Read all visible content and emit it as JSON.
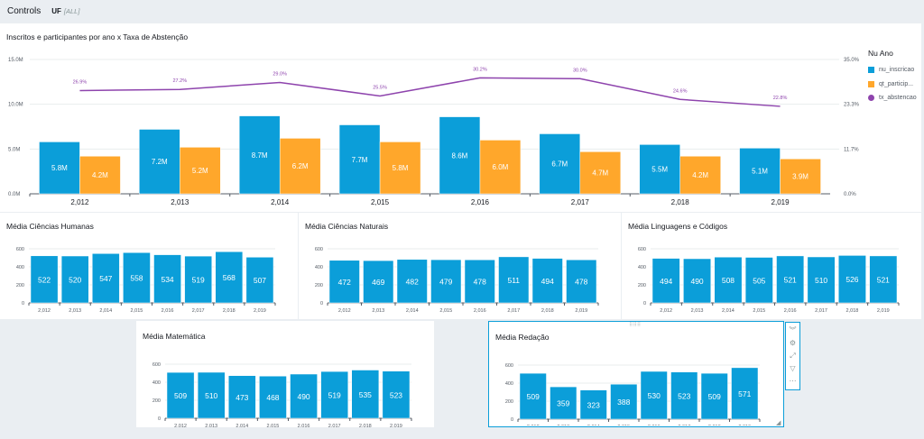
{
  "controls": {
    "label": "Controls",
    "filter_name": "UF",
    "filter_value": "[ALL]"
  },
  "colors": {
    "blue": "#0b9ed9",
    "orange": "#ffa72b",
    "purple": "#8e44ad",
    "selection": "#0b9ed9"
  },
  "toolbar": {
    "icons": [
      "collapse-icon",
      "settings-icon",
      "expand-icon",
      "filter-icon",
      "more-options-icon"
    ],
    "glyphs": [
      "︾",
      "⚙",
      "⤢",
      "▽",
      "⋯"
    ],
    "drag_glyph": "⠿⠿⠿",
    "resize_glyph": "◢"
  },
  "chart_data": [
    {
      "type": "bar",
      "title": "Inscritos e participantes por ano x Taxa de Abstenção",
      "categories": [
        "2,012",
        "2,013",
        "2,014",
        "2,015",
        "2,016",
        "2,017",
        "2,018",
        "2,019"
      ],
      "series": [
        {
          "name": "nu_inscricao",
          "type": "bar",
          "axis": "left",
          "values": [
            5.8,
            7.2,
            8.7,
            7.7,
            8.6,
            6.7,
            5.5,
            5.1
          ],
          "labels": [
            "5.8M",
            "7.2M",
            "8.7M",
            "7.7M",
            "8.6M",
            "6.7M",
            "5.5M",
            "5.1M"
          ]
        },
        {
          "name": "qt_particip...",
          "type": "bar",
          "axis": "left",
          "values": [
            4.2,
            5.2,
            6.2,
            5.8,
            6.0,
            4.7,
            4.2,
            3.9
          ],
          "labels": [
            "4.2M",
            "5.2M",
            "6.2M",
            "5.8M",
            "6.0M",
            "4.7M",
            "4.2M",
            "3.9M"
          ]
        },
        {
          "name": "tx_abstencao",
          "type": "line",
          "axis": "right",
          "values": [
            26.9,
            27.2,
            29.0,
            25.5,
            30.2,
            30.0,
            24.6,
            22.8
          ],
          "labels": [
            "26.9%",
            "27.2%",
            "29.0%",
            "25.5%",
            "30.2%",
            "30.0%",
            "24.6%",
            "22.8%"
          ]
        }
      ],
      "left_axis": {
        "ticks": [
          "0.0M",
          "5.0M",
          "10.0M",
          "15.0M"
        ],
        "range": [
          0,
          15
        ]
      },
      "right_axis": {
        "ticks": [
          "0.0%",
          "11.7%",
          "23.3%",
          "35.0%"
        ],
        "range": [
          0,
          35
        ]
      },
      "legend_title": "Nu Ano",
      "legend_position": "right",
      "grid": true
    },
    {
      "type": "bar",
      "title": "Média Ciências Humanas",
      "categories": [
        "2,012",
        "2,013",
        "2,014",
        "2,015",
        "2,016",
        "2,017",
        "2,018",
        "2,019"
      ],
      "values": [
        522,
        520,
        547,
        558,
        534,
        519,
        568,
        507
      ],
      "yticks": [
        "0",
        "200",
        "400",
        "600"
      ],
      "ylim": [
        0,
        600
      ],
      "grid": true
    },
    {
      "type": "bar",
      "title": "Média Ciências Naturais",
      "categories": [
        "2,012",
        "2,013",
        "2,014",
        "2,015",
        "2,016",
        "2,017",
        "2,018",
        "2,019"
      ],
      "values": [
        472,
        469,
        482,
        479,
        478,
        511,
        494,
        478
      ],
      "yticks": [
        "0",
        "200",
        "400",
        "600"
      ],
      "ylim": [
        0,
        600
      ],
      "grid": true
    },
    {
      "type": "bar",
      "title": "Média Linguagens e Códigos",
      "categories": [
        "2,012",
        "2,013",
        "2,014",
        "2,015",
        "2,016",
        "2,017",
        "2,018",
        "2,019"
      ],
      "values": [
        494,
        490,
        508,
        505,
        521,
        510,
        526,
        521
      ],
      "yticks": [
        "0",
        "200",
        "400",
        "600"
      ],
      "ylim": [
        0,
        600
      ],
      "grid": true
    },
    {
      "type": "bar",
      "title": "Média Matemática",
      "categories": [
        "2,012",
        "2,013",
        "2,014",
        "2,015",
        "2,016",
        "2,017",
        "2,018",
        "2,019"
      ],
      "values": [
        509,
        510,
        473,
        468,
        490,
        519,
        535,
        523
      ],
      "yticks": [
        "0",
        "200",
        "400",
        "600"
      ],
      "ylim": [
        0,
        600
      ],
      "grid": true
    },
    {
      "type": "bar",
      "title": "Média Redação",
      "categories": [
        "2,012",
        "2,013",
        "2,014",
        "2,015",
        "2,016",
        "2,017",
        "2,018",
        "2,019"
      ],
      "values": [
        509,
        359,
        323,
        388,
        530,
        523,
        509,
        571
      ],
      "yticks": [
        "0",
        "200",
        "400",
        "600"
      ],
      "ylim": [
        0,
        600
      ],
      "grid": true,
      "selected": true
    }
  ]
}
